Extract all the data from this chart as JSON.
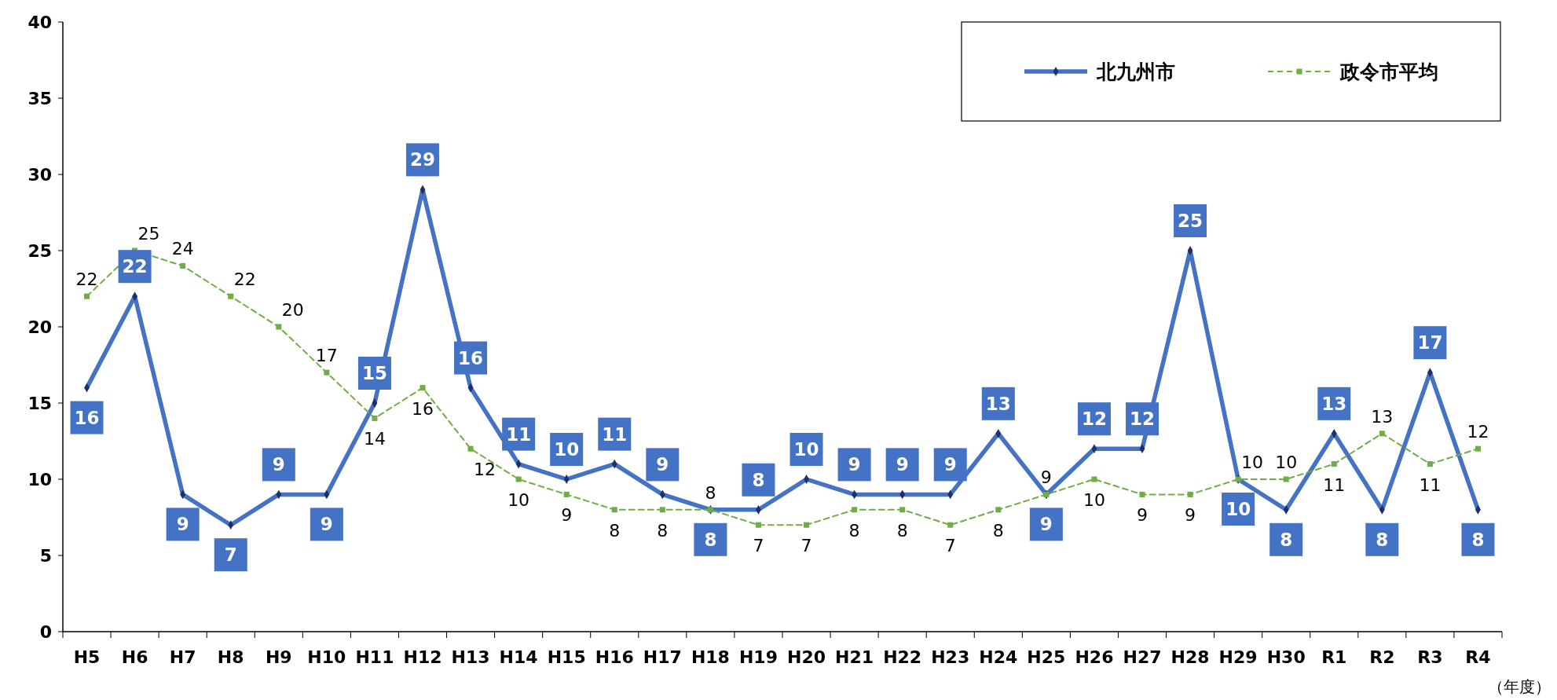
{
  "chart_data": {
    "type": "line",
    "xlabel": "（年度）",
    "categories": [
      "H5",
      "H6",
      "H7",
      "H8",
      "H9",
      "H10",
      "H11",
      "H12",
      "H13",
      "H14",
      "H15",
      "H16",
      "H17",
      "H18",
      "H19",
      "H20",
      "H21",
      "H22",
      "H23",
      "H24",
      "H25",
      "H26",
      "H27",
      "H28",
      "H29",
      "H30",
      "R1",
      "R2",
      "R3",
      "R4"
    ],
    "series": [
      {
        "name": "北九州市",
        "color": "#4472c4",
        "marker": "diamond",
        "line_style": "solid",
        "values": [
          16,
          22,
          9,
          7,
          9,
          9,
          15,
          29,
          16,
          11,
          10,
          11,
          9,
          8,
          8,
          10,
          9,
          9,
          9,
          13,
          9,
          12,
          12,
          25,
          10,
          8,
          13,
          8,
          17,
          8
        ]
      },
      {
        "name": "政令市平均",
        "color": "#70ad47",
        "marker": "square",
        "line_style": "dashed",
        "values": [
          22,
          25,
          24,
          22,
          20,
          17,
          14,
          16,
          12,
          10,
          9,
          8,
          8,
          8,
          7,
          7,
          8,
          8,
          7,
          8,
          9,
          10,
          9,
          9,
          10,
          10,
          11,
          13,
          11,
          12
        ]
      }
    ],
    "ylim": [
      0,
      40
    ],
    "yticks": [
      0,
      5,
      10,
      15,
      20,
      25,
      30,
      35,
      40
    ],
    "grid": false,
    "legend": "top right",
    "data_labels": true
  }
}
